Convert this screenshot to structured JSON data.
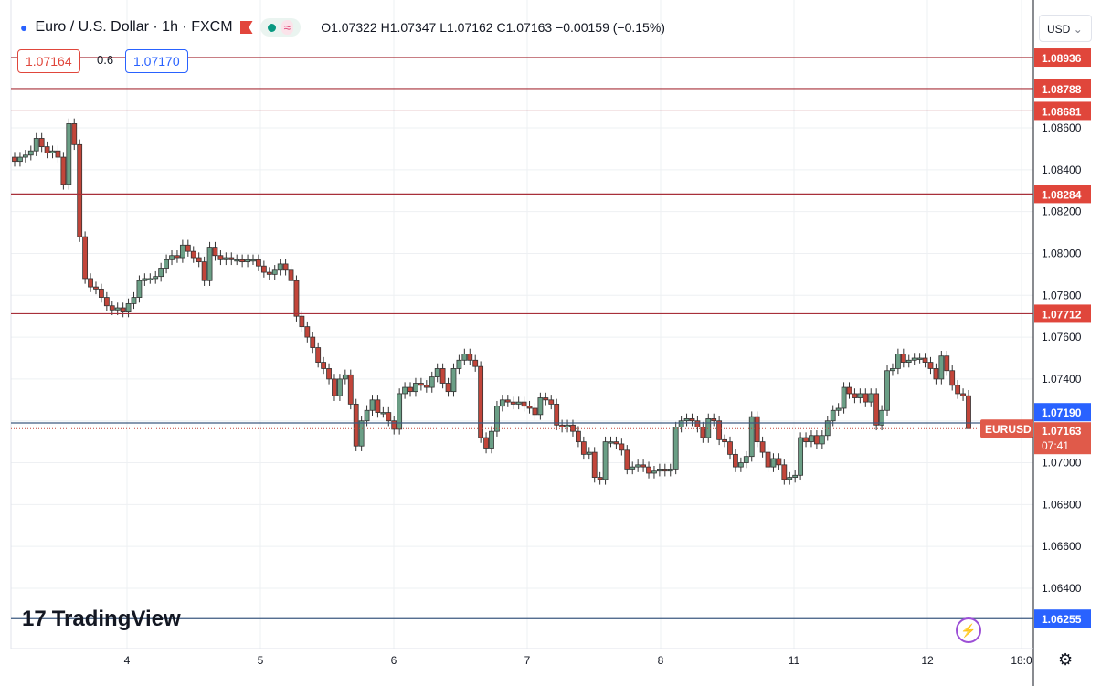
{
  "header": {
    "title": "Euro / U.S. Dollar · 1h · FXCM",
    "ohlc": "O1.07322 H1.07347 L1.07162 C1.07163 −0.00159 (−0.15%)",
    "bid": "1.07164",
    "spread": "0.6",
    "ask": "1.07170",
    "currency": "USD",
    "icons": [
      "euro-dollar-flag-icon",
      "flag-icon",
      "market-open-dot-icon",
      "wave-icon"
    ]
  },
  "colors": {
    "up": "#6b9f86",
    "down": "#c2453a",
    "resistance": "#e0463b",
    "support": "#2962ff",
    "current": "#e05a4a"
  },
  "logo": "TradingView",
  "chart_data": {
    "type": "candlestick",
    "symbol": "EURUSD",
    "ylim": [
      1.0622,
      1.0905
    ],
    "y_ticks": [
      "1.08600",
      "1.08400",
      "1.08200",
      "1.08000",
      "1.07800",
      "1.07600",
      "1.07400",
      "1.07200",
      "1.07000",
      "1.06800",
      "1.06600",
      "1.06400"
    ],
    "x_ticks": [
      "4",
      "5",
      "6",
      "7",
      "8",
      "11",
      "12",
      "18:0"
    ],
    "grid": true,
    "closes": [
      1.0844,
      1.0846,
      1.0847,
      1.0849,
      1.0855,
      1.0851,
      1.0848,
      1.0849,
      1.0846,
      1.0833,
      1.0862,
      1.0852,
      1.0808,
      1.0788,
      1.0784,
      1.0783,
      1.0779,
      1.0775,
      1.0773,
      1.0774,
      1.0772,
      1.0776,
      1.0779,
      1.0787,
      1.0788,
      1.0788,
      1.0789,
      1.0793,
      1.0797,
      1.0799,
      1.0798,
      1.0804,
      1.0801,
      1.0798,
      1.0796,
      1.0787,
      1.0803,
      1.0799,
      1.0797,
      1.0798,
      1.0797,
      1.0797,
      1.0796,
      1.0797,
      1.0797,
      1.0794,
      1.0791,
      1.079,
      1.0792,
      1.0795,
      1.0792,
      1.0787,
      1.077,
      1.0765,
      1.076,
      1.0755,
      1.0748,
      1.0745,
      1.074,
      1.0732,
      1.074,
      1.0742,
      1.0728,
      1.0708,
      1.072,
      1.0725,
      1.073,
      1.0724,
      1.0724,
      1.072,
      1.0716,
      1.0733,
      1.0736,
      1.0734,
      1.0738,
      1.0737,
      1.0736,
      1.0741,
      1.0745,
      1.0738,
      1.0734,
      1.0745,
      1.0749,
      1.0752,
      1.0749,
      1.0746,
      1.0712,
      1.0707,
      1.0715,
      1.0727,
      1.073,
      1.0729,
      1.0728,
      1.0729,
      1.0727,
      1.0726,
      1.0723,
      1.0731,
      1.073,
      1.0728,
      1.0718,
      1.0717,
      1.0718,
      1.0715,
      1.071,
      1.0704,
      1.0705,
      1.0693,
      1.0692,
      1.071,
      1.071,
      1.0709,
      1.0706,
      1.0697,
      1.0698,
      1.0699,
      1.0698,
      1.0695,
      1.0696,
      1.0697,
      1.0696,
      1.0697,
      1.0717,
      1.072,
      1.0721,
      1.072,
      1.0717,
      1.0712,
      1.0721,
      1.072,
      1.0711,
      1.071,
      1.0704,
      1.0698,
      1.07,
      1.0703,
      1.0722,
      1.071,
      1.0705,
      1.0698,
      1.0702,
      1.0699,
      1.0692,
      1.0693,
      1.0694,
      1.0712,
      1.071,
      1.0713,
      1.0709,
      1.0713,
      1.072,
      1.0725,
      1.0726,
      1.0736,
      1.0733,
      1.0731,
      1.0733,
      1.0729,
      1.0733,
      1.0718,
      1.0725,
      1.0744,
      1.0745,
      1.0752,
      1.0748,
      1.0749,
      1.075,
      1.075,
      1.0748,
      1.0745,
      1.074,
      1.0751,
      1.0744,
      1.0737,
      1.0733,
      1.0732,
      1.07163
    ],
    "last_candle": {
      "open": 1.07322,
      "high": 1.07347,
      "low": 1.07162,
      "close": 1.07163
    },
    "horizontal_lines": [
      {
        "price": "1.08936",
        "kind": "resistance"
      },
      {
        "price": "1.08788",
        "kind": "resistance"
      },
      {
        "price": "1.08681",
        "kind": "resistance"
      },
      {
        "price": "1.08284",
        "kind": "resistance"
      },
      {
        "price": "1.07712",
        "kind": "resistance"
      },
      {
        "price": "1.07190",
        "kind": "support"
      },
      {
        "price": "1.06255",
        "kind": "support"
      }
    ],
    "current": {
      "label": "EURUSD",
      "price": "1.07163",
      "countdown": "07:41"
    }
  }
}
